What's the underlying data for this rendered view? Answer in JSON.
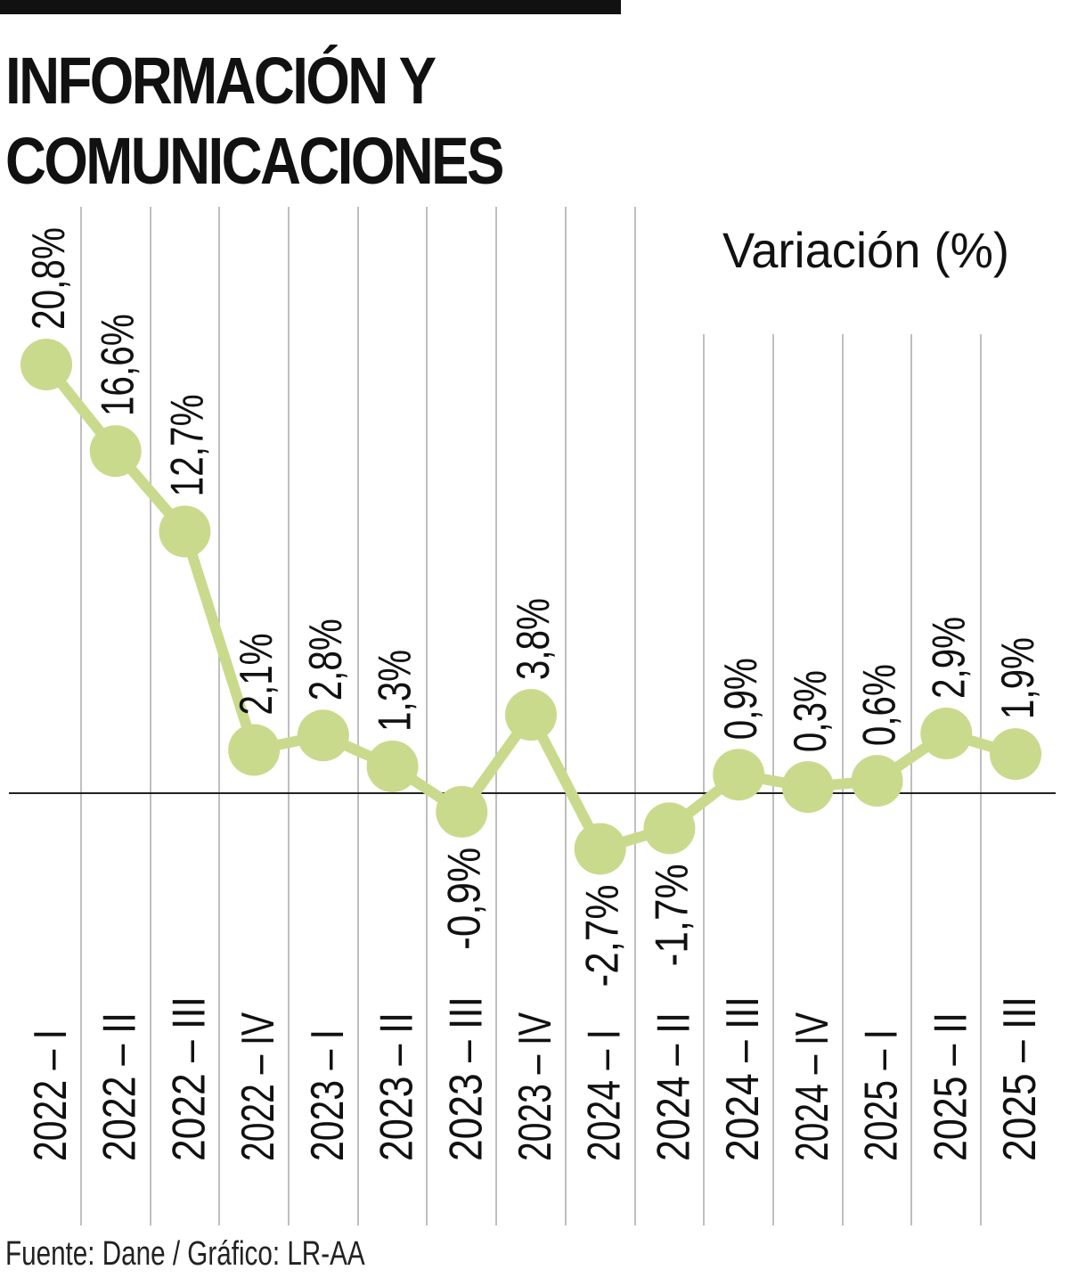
{
  "title_lines": [
    "INFORMACIÓN Y",
    "COMUNICACIONES"
  ],
  "source": "Fuente: Dane / Gráfico: LR-AA",
  "colors": {
    "series": "#c9da8d",
    "text": "#111111",
    "grid": "#aaaaaa",
    "baseline": "#222222",
    "top_bar": "#111111"
  },
  "chart_data": {
    "type": "line",
    "title": "INFORMACIÓN Y COMUNICACIONES",
    "ylabel": "Variación (%)",
    "xlabel": "",
    "categories": [
      "2022 – I",
      "2022 – II",
      "2022 – III",
      "2022 – IV",
      "2023 – I",
      "2023 – II",
      "2023 – III",
      "2023 – IV",
      "2024 – I",
      "2024 – II",
      "2024 – III",
      "2024 – IV",
      "2025 – I",
      "2025 – II",
      "2025 – III"
    ],
    "values": [
      20.8,
      16.6,
      12.7,
      2.1,
      2.8,
      1.3,
      -0.9,
      3.8,
      -2.7,
      -1.7,
      0.9,
      0.3,
      0.6,
      2.9,
      1.9
    ],
    "value_labels": [
      "20,8%",
      "16,6%",
      "12,7%",
      "2,1%",
      "2,8%",
      "1,3%",
      "-0,9%",
      "3,8%",
      "-2,7%",
      "-1,7%",
      "0,9%",
      "0,3%",
      "0,6%",
      "2,9%",
      "1,9%"
    ],
    "zero_line": true,
    "grid": "vertical"
  }
}
